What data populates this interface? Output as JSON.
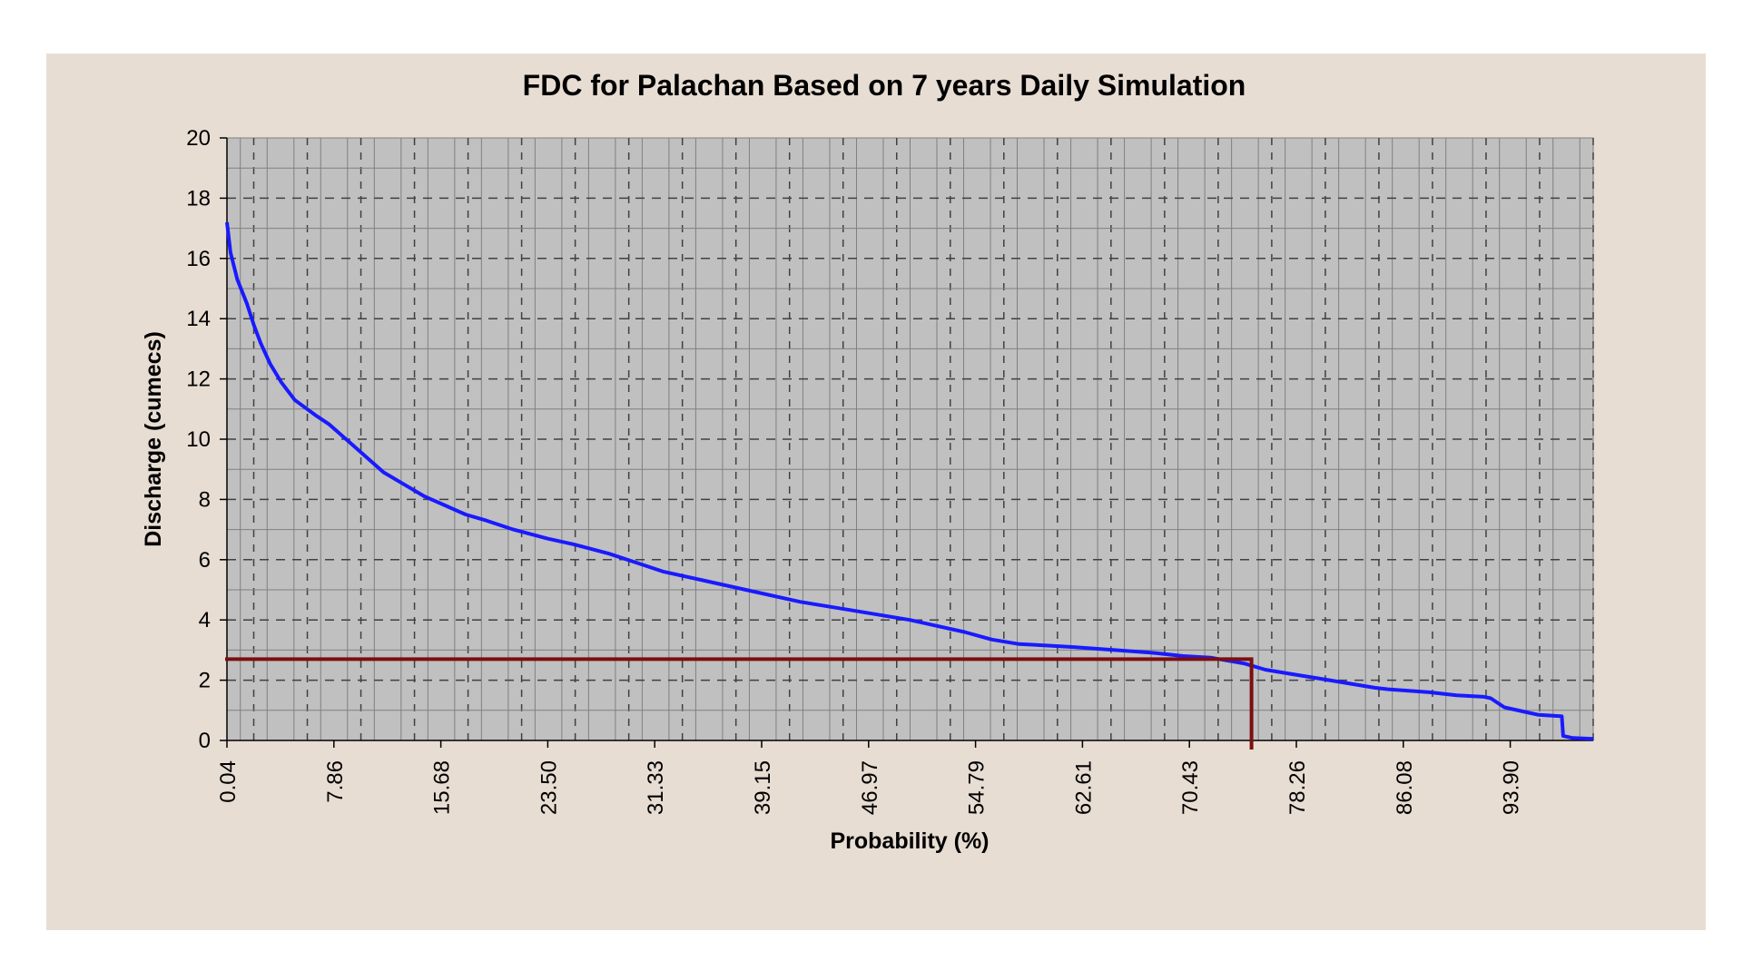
{
  "colors": {
    "panel_background": "#e8ddd3",
    "plot_background": "#c0c0c0",
    "curve": "#1a1aff",
    "marker_line": "#7b0f0f",
    "grid": "#808080"
  },
  "chart_data": {
    "type": "line",
    "title": "FDC for Palachan Based on 7 years Daily Simulation",
    "xlabel": "Probability (%)",
    "ylabel": "Discharge (cumecs)",
    "xlim": [
      0.04,
      100
    ],
    "ylim": [
      0,
      20
    ],
    "x_ticks": [
      "0.04",
      "7.86",
      "15.68",
      "23.50",
      "31.33",
      "39.15",
      "46.97",
      "54.79",
      "62.61",
      "70.43",
      "78.26",
      "86.08",
      "93.90"
    ],
    "y_ticks": [
      "0",
      "2",
      "4",
      "6",
      "8",
      "10",
      "12",
      "14",
      "16",
      "18",
      "20"
    ],
    "grid": "major solid, minor dashed",
    "series": [
      {
        "x": [
          0.04,
          0.3,
          0.8,
          1.5,
          2.0,
          2.5,
          3.2,
          4.0,
          5.0,
          6.5,
          7.5,
          8.0,
          9.0,
          10.5,
          11.5,
          13.0,
          14.5,
          16.0,
          17.5,
          19.0,
          21.0,
          23.5,
          25.5,
          28.0,
          30.0,
          32.0,
          35.0,
          38.0,
          42.0,
          46.0,
          50.0,
          54.0,
          56.0,
          58.0,
          60.0,
          62.0,
          65.0,
          68.0,
          70.0,
          72.0,
          74.5,
          76.0,
          78.0,
          80.0,
          82.0,
          84.0,
          85.0,
          88.0,
          90.0,
          92.0,
          92.5,
          93.5,
          95.0,
          96.0,
          97.7,
          97.8,
          98.5,
          100.0
        ],
        "y": [
          17.2,
          16.2,
          15.3,
          14.5,
          13.8,
          13.2,
          12.5,
          11.9,
          11.3,
          10.8,
          10.5,
          10.3,
          9.9,
          9.3,
          8.9,
          8.5,
          8.1,
          7.8,
          7.5,
          7.3,
          7.0,
          6.7,
          6.5,
          6.2,
          5.9,
          5.6,
          5.3,
          5.0,
          4.6,
          4.3,
          4.0,
          3.6,
          3.35,
          3.2,
          3.15,
          3.1,
          3.0,
          2.9,
          2.8,
          2.75,
          2.55,
          2.35,
          2.2,
          2.05,
          1.9,
          1.75,
          1.7,
          1.6,
          1.5,
          1.45,
          1.4,
          1.1,
          0.95,
          0.85,
          0.8,
          0.15,
          0.08,
          0.05
        ]
      }
    ],
    "marker": {
      "probability": 75.0,
      "discharge": 2.7
    }
  }
}
